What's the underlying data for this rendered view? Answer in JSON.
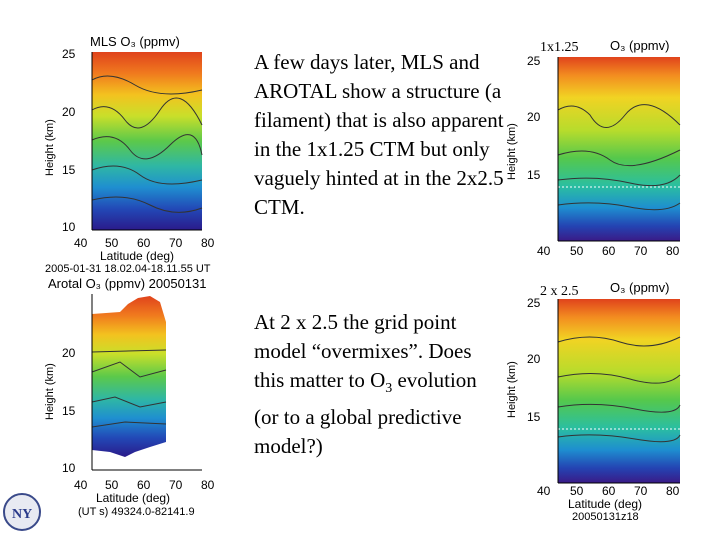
{
  "panels": [
    {
      "id": "mls",
      "title": "MLS O₃ (ppmv)",
      "ylabel": "Height (km)",
      "xlabel": "Latitude (deg)",
      "yticks": [
        "25",
        "20",
        "15",
        "10"
      ],
      "xticks": [
        "40",
        "50",
        "60",
        "70",
        "80"
      ],
      "caption": "2005-01-31 18.02.04-18.11.55 UT"
    },
    {
      "id": "ctm1",
      "title": "O₃ (ppmv)",
      "label": "1x1.25",
      "ylabel": "Height (km)",
      "yticks": [
        "25",
        "20",
        "15"
      ],
      "xticks": [
        "40",
        "50",
        "60",
        "70",
        "80"
      ]
    },
    {
      "id": "arotal",
      "title": "Arotal O₃ (ppmv) 20050131",
      "ylabel": "Height (km)",
      "xlabel": "Latitude (deg)",
      "yticks": [
        "20",
        "15",
        "10"
      ],
      "xticks": [
        "40",
        "50",
        "60",
        "70",
        "80"
      ],
      "caption": "(UT s) 49324.0-82141.9"
    },
    {
      "id": "ctm2",
      "title": "O₃ (ppmv)",
      "label": "2 x 2.5",
      "ylabel": "Height (km)",
      "xlabel": "Latitude (deg)",
      "yticks": [
        "25",
        "20",
        "15"
      ],
      "xticks": [
        "40",
        "50",
        "60",
        "70",
        "80"
      ],
      "caption": "20050131z18"
    }
  ],
  "text": {
    "p1": "A few days later, MLS and AROTAL show a structure (a filament) that is also apparent in the 1x1.25 CTM but only vaguely hinted at in the 2x2.5 CTM.",
    "p2a": "At 2 x 2.5 the grid point model “overmixes”. Does this matter to O",
    "p2sub": "3",
    "p2b": " evolution (or to a global predictive model?)"
  },
  "logo": {
    "text": "NY"
  },
  "colors": {
    "high": "#d2321e",
    "mid": "#4ec25a",
    "low": "#1e2a9a"
  }
}
